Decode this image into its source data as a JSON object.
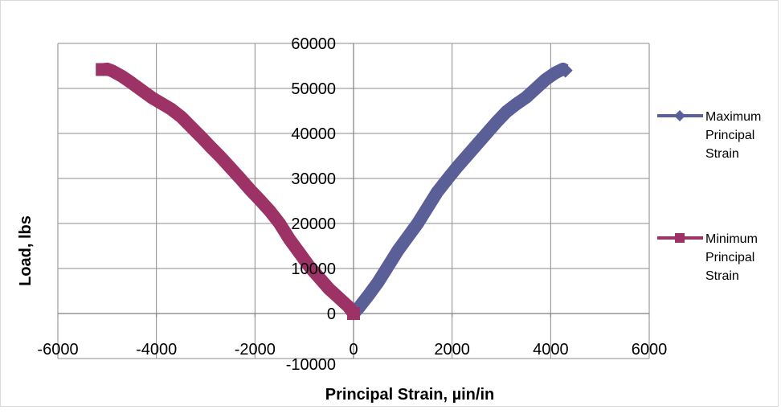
{
  "chart_data": {
    "type": "line",
    "title": "",
    "xlabel": "Principal Strain, µin/in",
    "ylabel": "Load, lbs",
    "xlim": [
      -6000,
      6000
    ],
    "ylim": [
      -10000,
      60000
    ],
    "x_ticks": [
      -6000,
      -4000,
      -2000,
      0,
      2000,
      4000,
      6000
    ],
    "x_tick_labels": [
      "-6000",
      "-4000",
      "-2000",
      "0",
      "2000",
      "4000",
      "6000"
    ],
    "y_ticks": [
      -10000,
      0,
      10000,
      20000,
      30000,
      40000,
      50000,
      60000
    ],
    "y_tick_labels": [
      "-10000",
      "0",
      "10000",
      "20000",
      "30000",
      "40000",
      "50000",
      "60000"
    ],
    "grid": true,
    "legend_position": "right",
    "series": [
      {
        "name": "Maximum Principal Strain",
        "color": "#5B5F97",
        "marker": "diamond",
        "points": [
          [
            0,
            0
          ],
          [
            100,
            1200
          ],
          [
            300,
            4000
          ],
          [
            500,
            7000
          ],
          [
            700,
            10500
          ],
          [
            900,
            14000
          ],
          [
            1100,
            17000
          ],
          [
            1300,
            20000
          ],
          [
            1500,
            23500
          ],
          [
            1700,
            27000
          ],
          [
            1900,
            29800
          ],
          [
            2100,
            32500
          ],
          [
            2300,
            35000
          ],
          [
            2500,
            37500
          ],
          [
            2700,
            40000
          ],
          [
            2900,
            42500
          ],
          [
            3100,
            44800
          ],
          [
            3300,
            46500
          ],
          [
            3500,
            48000
          ],
          [
            3700,
            50000
          ],
          [
            3900,
            52000
          ],
          [
            4100,
            53500
          ],
          [
            4250,
            54300
          ],
          [
            4300,
            54000
          ]
        ]
      },
      {
        "name": "Minimum Principal Strain",
        "color": "#9C3266",
        "marker": "square",
        "points": [
          [
            0,
            0
          ],
          [
            -100,
            1500
          ],
          [
            -300,
            3500
          ],
          [
            -500,
            5500
          ],
          [
            -700,
            8000
          ],
          [
            -900,
            10500
          ],
          [
            -1100,
            13500
          ],
          [
            -1300,
            16500
          ],
          [
            -1500,
            20000
          ],
          [
            -1700,
            22800
          ],
          [
            -1900,
            25200
          ],
          [
            -2100,
            27500
          ],
          [
            -2300,
            30000
          ],
          [
            -2500,
            32400
          ],
          [
            -2700,
            34800
          ],
          [
            -2900,
            37000
          ],
          [
            -3100,
            39300
          ],
          [
            -3300,
            41500
          ],
          [
            -3500,
            43700
          ],
          [
            -3700,
            45400
          ],
          [
            -3900,
            46700
          ],
          [
            -4100,
            48000
          ],
          [
            -4300,
            49600
          ],
          [
            -4500,
            51200
          ],
          [
            -4700,
            52700
          ],
          [
            -4900,
            53900
          ],
          [
            -5000,
            54300
          ],
          [
            -5100,
            54200
          ]
        ]
      }
    ]
  }
}
